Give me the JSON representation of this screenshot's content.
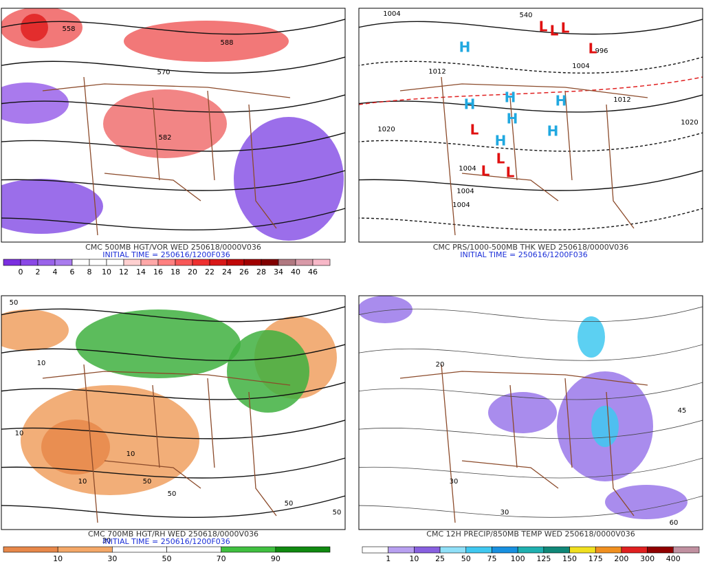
{
  "panels": [
    {
      "title": "CMC 500MB HGT/VOR WED 250618/0000V036",
      "initial_time": "INITIAL TIME = 250616/1200F036",
      "colorbar_labels": [
        "0",
        "2",
        "4",
        "6",
        "8",
        "10",
        "12",
        "14",
        "16",
        "18",
        "20",
        "22",
        "24",
        "26",
        "28",
        "34",
        "40",
        "46"
      ],
      "colorbar_colors": [
        "#7b2fe0",
        "#8a48e6",
        "#9a63ea",
        "#a97cee",
        "#ffffff",
        "#ffffff",
        "#ffffff",
        "#ffd0d0",
        "#ffa8a8",
        "#ff8080",
        "#f85858",
        "#ee3030",
        "#d81818",
        "#c00808",
        "#a00000",
        "#800000",
        "#b07880",
        "#d89aa8",
        "#f8b8c8"
      ],
      "map_labels": [
        "558",
        "570",
        "582",
        "588"
      ]
    },
    {
      "title": "CMC PRS/1000-500MB THK WED 250618/0000V036",
      "initial_time": "INITIAL TIME = 250616/1200F036",
      "map_labels": [
        "1004",
        "540",
        "1012",
        "1020",
        "1004",
        "996",
        "1012",
        "1020",
        "1004",
        "1004",
        "1004",
        "H",
        "H",
        "H",
        "H",
        "H",
        "H",
        "H",
        "L",
        "L",
        "L",
        "L",
        "L",
        "L",
        "L",
        "L"
      ]
    },
    {
      "title": "CMC 700MB HGT/RH WED 250618/0000V036",
      "initial_time": "INITIAL TIME = 250616/1200F036",
      "colorbar_labels": [
        "10",
        "30",
        "50",
        "70",
        "90"
      ],
      "colorbar_colors": [
        "#e8884a",
        "#f4a868",
        "#ffffff",
        "#ffffff",
        "#40c040",
        "#108a10"
      ],
      "map_labels": [
        "50",
        "10",
        "10",
        "10",
        "10",
        "50",
        "50",
        "30",
        "50",
        "50"
      ]
    },
    {
      "title": "CMC 12H PRECIP/850MB TEMP WED 250618/0000V036",
      "colorbar_labels": [
        "1",
        "10",
        "25",
        "50",
        "75",
        "100",
        "125",
        "150",
        "175",
        "200",
        "300",
        "400"
      ],
      "colorbar_colors": [
        "#ffffff",
        "#b8a0f0",
        "#8860e0",
        "#90e0f8",
        "#40c8f0",
        "#1890e0",
        "#20b0b0",
        "#108878",
        "#f0e020",
        "#f09020",
        "#e02020",
        "#900000",
        "#c090a0"
      ],
      "map_labels": [
        "30",
        "45",
        "60",
        "20",
        "30"
      ]
    }
  ]
}
